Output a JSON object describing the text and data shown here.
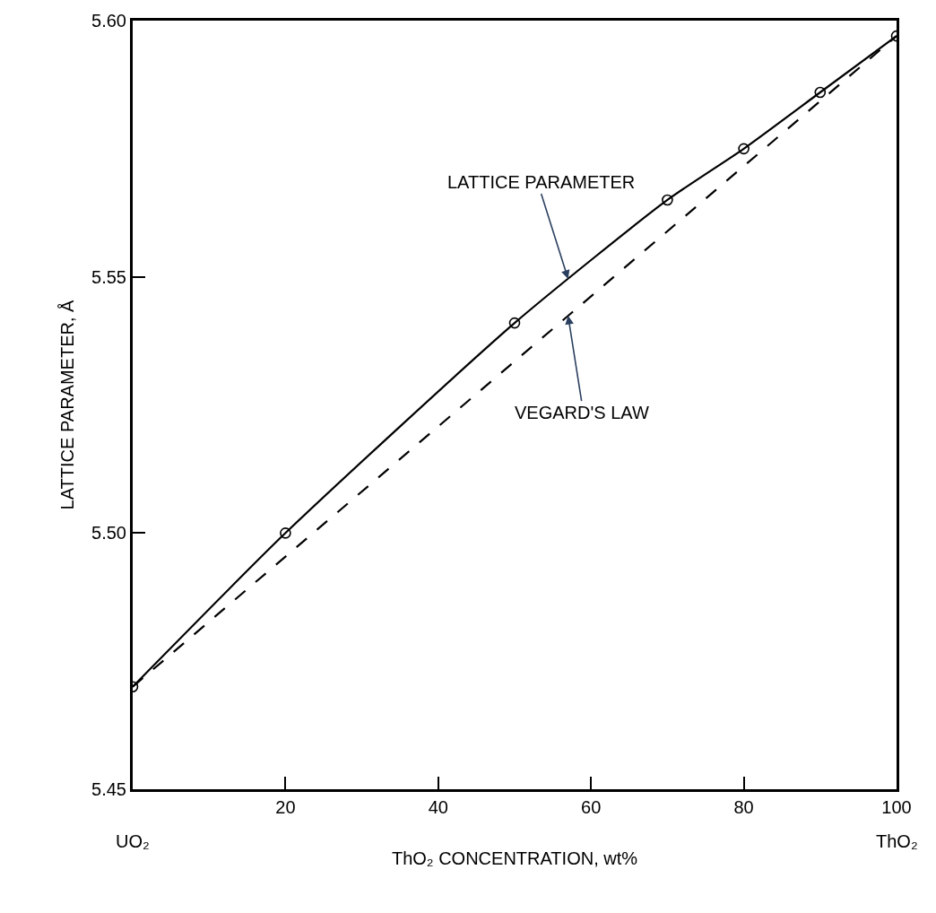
{
  "chart_data": {
    "type": "line",
    "xlabel": "ThO₂ CONCENTRATION, wt%",
    "ylabel": "LATTICE PARAMETER, Å",
    "series": [
      {
        "x": [
          0,
          20,
          50,
          70,
          80,
          90,
          100
        ],
        "values": [
          5.47,
          5.5,
          5.541,
          5.565,
          5.575,
          5.586,
          5.597
        ],
        "color": "#000000",
        "marker": "circle",
        "line_style": "solid"
      },
      {
        "x": [
          0,
          100
        ],
        "values": [
          5.47,
          5.597
        ],
        "color": "#000000",
        "marker": "none",
        "line_style": "dashed"
      }
    ],
    "annotations": [
      {
        "text": "LATTICE PARAMETER",
        "x": 57,
        "y": 5.5496
      },
      {
        "text": "VEGARD'S LAW",
        "x": 57,
        "y": 5.5424
      },
      "UO₂",
      "ThO₂"
    ],
    "xlim": [
      0,
      100
    ],
    "xticks": [
      20,
      40,
      60,
      80,
      100
    ],
    "ylim": [
      5.45,
      5.6
    ],
    "yticks": [
      5.45,
      {
        "value": 5.5,
        "label": "5.50"
      },
      5.55,
      {
        "value": 5.6,
        "label": "5.60"
      }
    ],
    "title": null
  }
}
